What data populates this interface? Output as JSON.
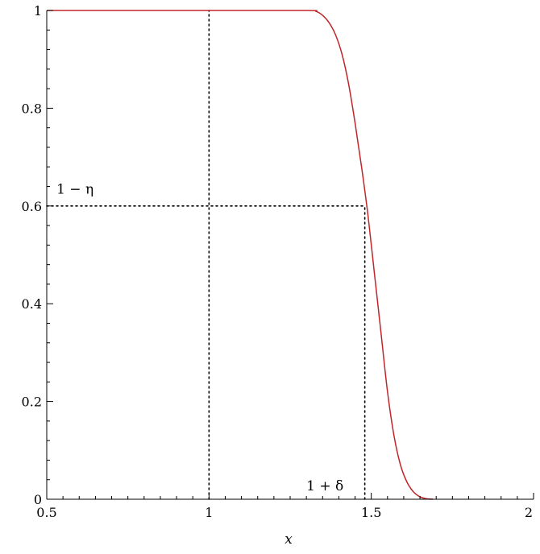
{
  "chart_data": {
    "type": "line",
    "title": "",
    "xlabel": "x",
    "ylabel": "",
    "xlim": [
      0.5,
      2
    ],
    "ylim": [
      0,
      1
    ],
    "x_ticks": [
      0.5,
      1,
      1.5,
      2
    ],
    "x_tick_labels": [
      "0.5",
      "1",
      "1.5",
      "2"
    ],
    "y_ticks": [
      0,
      0.2,
      0.4,
      0.6,
      0.8,
      1
    ],
    "y_tick_labels": [
      "0",
      "0.2",
      "0.4",
      "0.6",
      "0.8",
      "1"
    ],
    "grid": false,
    "series": [
      {
        "color": "#c0262a",
        "x": [
          0.5,
          1.0,
          1.3,
          1.33,
          1.35,
          1.37,
          1.39,
          1.41,
          1.43,
          1.45,
          1.47,
          1.49,
          1.51,
          1.53,
          1.55,
          1.57,
          1.59,
          1.61,
          1.63,
          1.65,
          1.67,
          1.69
        ],
        "y": [
          1.0,
          1.0,
          1.0,
          0.998,
          0.99,
          0.975,
          0.95,
          0.91,
          0.85,
          0.77,
          0.68,
          0.58,
          0.46,
          0.34,
          0.22,
          0.13,
          0.07,
          0.035,
          0.015,
          0.005,
          0.001,
          0.0
        ]
      }
    ],
    "reference_lines": [
      {
        "orientation": "vertical",
        "x": 1.0,
        "y_from": 0,
        "y_to": 1,
        "style": "dotted"
      },
      {
        "orientation": "vertical",
        "x": 1.48,
        "y_from": 0,
        "y_to": 0.6,
        "style": "dotted"
      },
      {
        "orientation": "horizontal",
        "y": 0.6,
        "x_from": 0.5,
        "x_to": 1.48,
        "style": "dotted"
      }
    ],
    "annotations": [
      {
        "text": "1 − η",
        "x": 0.53,
        "y": 0.625
      },
      {
        "text": "1 + δ",
        "x": 1.3,
        "y": 0.018
      }
    ]
  }
}
